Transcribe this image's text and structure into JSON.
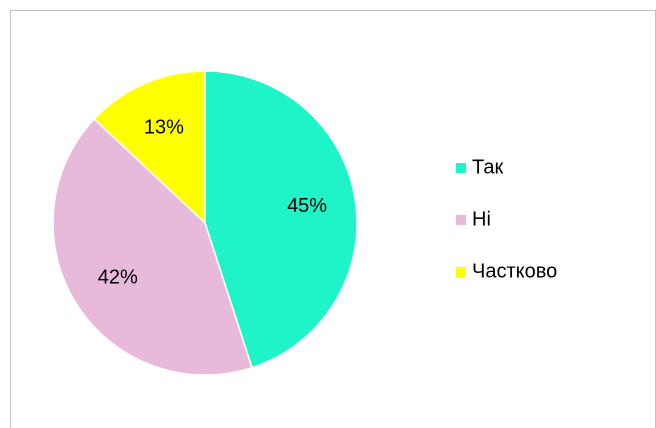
{
  "chart_data": {
    "type": "pie",
    "categories": [
      "Так",
      "Ні",
      "Частково"
    ],
    "values": [
      45,
      42,
      13
    ],
    "value_labels": [
      "45%",
      "42%",
      "13%"
    ],
    "colors": [
      "#1ff4c8",
      "#e8b9da",
      "#ffff00"
    ],
    "legend": "right"
  }
}
